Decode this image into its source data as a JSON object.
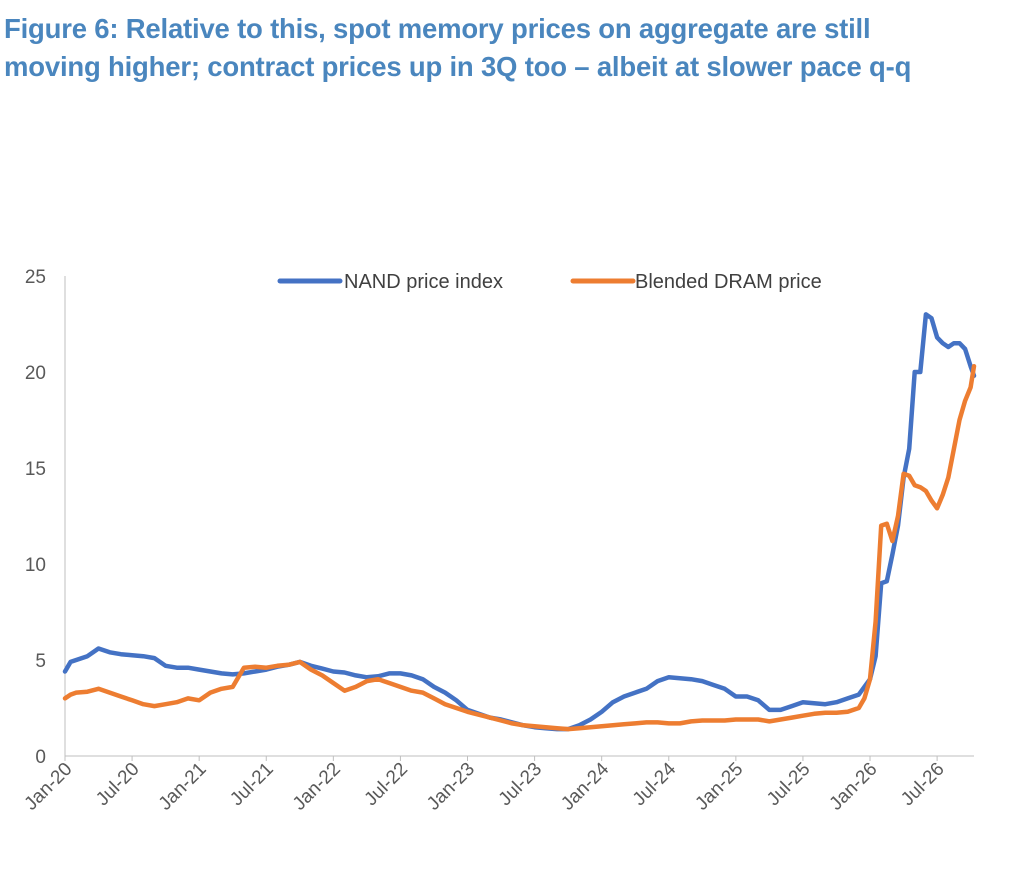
{
  "title": {
    "line1": "Figure 6: Relative to this, spot memory prices on aggregate are still",
    "line2": "moving higher; contract prices up in 3Q too – albeit at slower pace q-q"
  },
  "chart_data": {
    "type": "line",
    "x_ticks": [
      "Jan-20",
      "Jul-20",
      "Jan-21",
      "Jul-21",
      "Jan-22",
      "Jul-22",
      "Jan-23",
      "Jul-23",
      "Jan-24",
      "Jul-24",
      "Jan-25",
      "Jul-25",
      "Jan-26",
      "Jul-26"
    ],
    "y_ticks": [
      0,
      5,
      10,
      15,
      20,
      25
    ],
    "ylim": [
      0,
      25
    ],
    "xlim_months": [
      0,
      79
    ],
    "grid": false,
    "legend_position": "top",
    "series": [
      {
        "name": "NAND price index",
        "color": "#4472c4",
        "points": [
          [
            0,
            4.4
          ],
          [
            0.5,
            4.9
          ],
          [
            1,
            5.0
          ],
          [
            2,
            5.2
          ],
          [
            3,
            5.6
          ],
          [
            4,
            5.4
          ],
          [
            5,
            5.3
          ],
          [
            6,
            5.25
          ],
          [
            7,
            5.2
          ],
          [
            8,
            5.1
          ],
          [
            9,
            4.7
          ],
          [
            10,
            4.6
          ],
          [
            11,
            4.6
          ],
          [
            12,
            4.5
          ],
          [
            13,
            4.4
          ],
          [
            14,
            4.3
          ],
          [
            15,
            4.25
          ],
          [
            16,
            4.3
          ],
          [
            17,
            4.4
          ],
          [
            18,
            4.5
          ],
          [
            19,
            4.65
          ],
          [
            20,
            4.75
          ],
          [
            21,
            4.9
          ],
          [
            22,
            4.7
          ],
          [
            23,
            4.55
          ],
          [
            24,
            4.4
          ],
          [
            25,
            4.35
          ],
          [
            26,
            4.2
          ],
          [
            27,
            4.1
          ],
          [
            28,
            4.15
          ],
          [
            29,
            4.3
          ],
          [
            30,
            4.3
          ],
          [
            31,
            4.2
          ],
          [
            32,
            4.0
          ],
          [
            33,
            3.6
          ],
          [
            34,
            3.3
          ],
          [
            35,
            2.9
          ],
          [
            36,
            2.4
          ],
          [
            37,
            2.2
          ],
          [
            38,
            2.0
          ],
          [
            39,
            1.9
          ],
          [
            40,
            1.75
          ],
          [
            41,
            1.6
          ],
          [
            42,
            1.5
          ],
          [
            43,
            1.45
          ],
          [
            44,
            1.4
          ],
          [
            45,
            1.4
          ],
          [
            46,
            1.6
          ],
          [
            47,
            1.9
          ],
          [
            48,
            2.3
          ],
          [
            49,
            2.8
          ],
          [
            50,
            3.1
          ],
          [
            51,
            3.3
          ],
          [
            52,
            3.5
          ],
          [
            53,
            3.9
          ],
          [
            54,
            4.1
          ],
          [
            55,
            4.05
          ],
          [
            56,
            4.0
          ],
          [
            57,
            3.9
          ],
          [
            58,
            3.7
          ],
          [
            59,
            3.5
          ],
          [
            60,
            3.1
          ],
          [
            61,
            3.1
          ],
          [
            62,
            2.9
          ],
          [
            63,
            2.4
          ],
          [
            64,
            2.4
          ],
          [
            65,
            2.6
          ],
          [
            66,
            2.8
          ],
          [
            67,
            2.75
          ],
          [
            68,
            2.7
          ],
          [
            69,
            2.8
          ],
          [
            70,
            3.0
          ],
          [
            71,
            3.2
          ],
          [
            72,
            4.0
          ],
          [
            72.5,
            5.2
          ],
          [
            73,
            9.0
          ],
          [
            73.5,
            9.1
          ],
          [
            74,
            10.5
          ],
          [
            74.5,
            12.0
          ],
          [
            75,
            14.5
          ],
          [
            75.5,
            16.0
          ],
          [
            76,
            20.0
          ],
          [
            76.5,
            20.0
          ],
          [
            77,
            23.0
          ],
          [
            77.5,
            22.8
          ],
          [
            78,
            21.8
          ],
          [
            78.5,
            21.5
          ],
          [
            79,
            21.3
          ],
          [
            79.5,
            21.5
          ],
          [
            80,
            21.5
          ],
          [
            80.5,
            21.2
          ],
          [
            81,
            20.3
          ],
          [
            81.3,
            19.8
          ]
        ]
      },
      {
        "name": "Blended DRAM price",
        "color": "#ed7d31",
        "points": [
          [
            0,
            3.0
          ],
          [
            0.5,
            3.2
          ],
          [
            1,
            3.3
          ],
          [
            2,
            3.35
          ],
          [
            3,
            3.5
          ],
          [
            4,
            3.3
          ],
          [
            5,
            3.1
          ],
          [
            6,
            2.9
          ],
          [
            7,
            2.7
          ],
          [
            8,
            2.6
          ],
          [
            9,
            2.7
          ],
          [
            10,
            2.8
          ],
          [
            11,
            3.0
          ],
          [
            12,
            2.9
          ],
          [
            13,
            3.3
          ],
          [
            14,
            3.5
          ],
          [
            15,
            3.6
          ],
          [
            16,
            4.6
          ],
          [
            17,
            4.65
          ],
          [
            18,
            4.6
          ],
          [
            19,
            4.7
          ],
          [
            20,
            4.75
          ],
          [
            21,
            4.9
          ],
          [
            22,
            4.5
          ],
          [
            23,
            4.2
          ],
          [
            24,
            3.8
          ],
          [
            25,
            3.4
          ],
          [
            26,
            3.6
          ],
          [
            27,
            3.9
          ],
          [
            28,
            4.0
          ],
          [
            29,
            3.8
          ],
          [
            30,
            3.6
          ],
          [
            31,
            3.4
          ],
          [
            32,
            3.3
          ],
          [
            33,
            3.0
          ],
          [
            34,
            2.7
          ],
          [
            35,
            2.5
          ],
          [
            36,
            2.3
          ],
          [
            37,
            2.15
          ],
          [
            38,
            2.0
          ],
          [
            39,
            1.85
          ],
          [
            40,
            1.7
          ],
          [
            41,
            1.6
          ],
          [
            42,
            1.55
          ],
          [
            43,
            1.5
          ],
          [
            44,
            1.45
          ],
          [
            45,
            1.4
          ],
          [
            46,
            1.45
          ],
          [
            47,
            1.5
          ],
          [
            48,
            1.55
          ],
          [
            49,
            1.6
          ],
          [
            50,
            1.65
          ],
          [
            51,
            1.7
          ],
          [
            52,
            1.75
          ],
          [
            53,
            1.75
          ],
          [
            54,
            1.7
          ],
          [
            55,
            1.7
          ],
          [
            56,
            1.8
          ],
          [
            57,
            1.85
          ],
          [
            58,
            1.85
          ],
          [
            59,
            1.85
          ],
          [
            60,
            1.9
          ],
          [
            61,
            1.9
          ],
          [
            62,
            1.9
          ],
          [
            63,
            1.8
          ],
          [
            64,
            1.9
          ],
          [
            65,
            2.0
          ],
          [
            66,
            2.1
          ],
          [
            67,
            2.2
          ],
          [
            68,
            2.25
          ],
          [
            69,
            2.25
          ],
          [
            70,
            2.3
          ],
          [
            71,
            2.5
          ],
          [
            71.5,
            3.0
          ],
          [
            72,
            4.0
          ],
          [
            72.5,
            7.0
          ],
          [
            73,
            12.0
          ],
          [
            73.5,
            12.1
          ],
          [
            74,
            11.2
          ],
          [
            74.5,
            12.5
          ],
          [
            75,
            14.7
          ],
          [
            75.5,
            14.6
          ],
          [
            76,
            14.1
          ],
          [
            76.5,
            14.0
          ],
          [
            77,
            13.8
          ],
          [
            77.5,
            13.3
          ],
          [
            78,
            12.9
          ],
          [
            78.5,
            13.6
          ],
          [
            79,
            14.5
          ],
          [
            79.5,
            16.0
          ],
          [
            80,
            17.5
          ],
          [
            80.5,
            18.5
          ],
          [
            81,
            19.2
          ],
          [
            81.3,
            20.3
          ]
        ]
      }
    ]
  }
}
